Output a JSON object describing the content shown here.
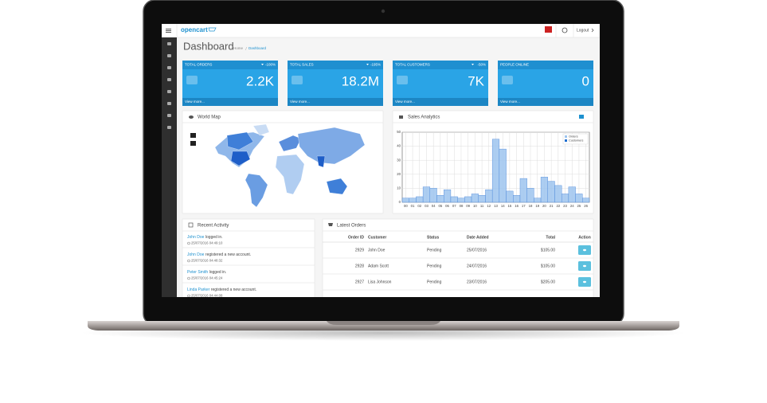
{
  "header": {
    "logo": "opencart",
    "logout": "Logout"
  },
  "page": {
    "title": "Dashboard",
    "breadcrumb": [
      "Home",
      "Dashboard"
    ]
  },
  "tiles": [
    {
      "title": "TOTAL ORDERS",
      "change": "-100%",
      "value": "2.2K",
      "link": "View more..."
    },
    {
      "title": "TOTAL SALES",
      "change": "-195%",
      "value": "18.2M",
      "link": "View more..."
    },
    {
      "title": "TOTAL CUSTOMERS",
      "change": "-50%",
      "value": "7K",
      "link": "View more..."
    },
    {
      "title": "PEOPLE ONLINE",
      "value": "0",
      "link": "View more..."
    }
  ],
  "world_map": {
    "title": "World Map"
  },
  "chart_data": {
    "type": "bar",
    "title": "Sales Analytics",
    "categories": [
      "00",
      "01",
      "02",
      "03",
      "04",
      "05",
      "06",
      "07",
      "08",
      "09",
      "10",
      "11",
      "12",
      "13",
      "14",
      "15",
      "16",
      "17",
      "18",
      "19",
      "20",
      "21",
      "22",
      "23",
      "24",
      "25",
      "26"
    ],
    "series": [
      {
        "name": "Orders",
        "color": "#9dc4ee",
        "values": [
          3,
          3,
          4,
          11,
          10,
          5,
          9,
          4,
          3,
          4,
          6,
          5,
          9,
          45,
          38,
          8,
          5,
          17,
          10,
          3,
          18,
          15,
          12,
          6,
          11,
          6,
          3
        ]
      },
      {
        "name": "Customers",
        "color": "#1f6fd1",
        "values": [
          0,
          0,
          0,
          0,
          0,
          0,
          0,
          0,
          0,
          0,
          0,
          0,
          0,
          0,
          0,
          0,
          0,
          0,
          0,
          0,
          0,
          0,
          0,
          0,
          0,
          0,
          0
        ]
      }
    ],
    "ylim": [
      0,
      50
    ],
    "yticks": [
      0,
      10,
      20,
      30,
      40,
      50
    ],
    "grid": true,
    "legend": "top-right"
  },
  "recent_activity": {
    "title": "Recent Activity",
    "items": [
      {
        "name": "John Doe",
        "text": "logged in.",
        "date": "25/07/2016 04:49:10"
      },
      {
        "name": "John Doe",
        "text": "registered a new account.",
        "date": "25/07/2016 04:48:32"
      },
      {
        "name": "Peter Smith",
        "text": "logged in.",
        "date": "25/07/2016 04:45:24"
      },
      {
        "name": "Linda Parker",
        "text": "registered a new account.",
        "date": "25/07/2016 04:44:08"
      }
    ]
  },
  "latest_orders": {
    "title": "Latest Orders",
    "columns": [
      "Order ID",
      "Customer",
      "Status",
      "Date Added",
      "Total",
      "Action"
    ],
    "rows": [
      [
        "2929",
        "John Doe",
        "Pending",
        "25/07/2016",
        "$105.00"
      ],
      [
        "2928",
        "Adam Scott",
        "Pending",
        "24/07/2016",
        "$105.00"
      ],
      [
        "2927",
        "Lisa Johnson",
        "Pending",
        "23/07/2016",
        "$205.00"
      ]
    ]
  }
}
